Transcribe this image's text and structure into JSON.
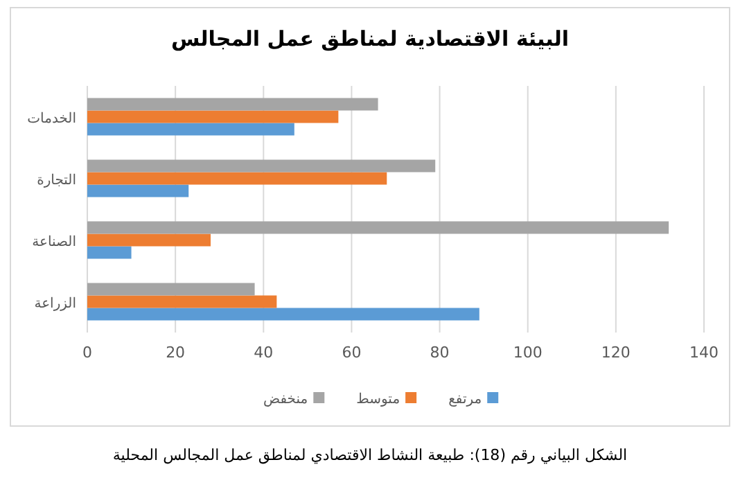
{
  "chart_data": {
    "type": "bar",
    "orientation": "horizontal",
    "title": "البيئة الاقتصادية لمناطق عمل المجالس",
    "categories": [
      "الخدمات",
      "التجارة",
      "الصناعة",
      "الزراعة"
    ],
    "series": [
      {
        "name": "مرتفع",
        "color": "#5b9bd5",
        "values": [
          47,
          23,
          10,
          89
        ]
      },
      {
        "name": "متوسط",
        "color": "#ed7d31",
        "values": [
          57,
          68,
          28,
          43
        ]
      },
      {
        "name": "منخفض",
        "color": "#a5a5a5",
        "values": [
          66,
          79,
          132,
          38
        ]
      }
    ],
    "xlim": [
      0,
      140
    ],
    "xticks": [
      0,
      20,
      40,
      60,
      80,
      100,
      120,
      140
    ],
    "grid": "x",
    "legend": "bottom",
    "annotations": [
      "الشكل البياني رقم (18): طبيعة النشاط الاقتصادي لمناطق عمل المجالس المحلية"
    ]
  }
}
